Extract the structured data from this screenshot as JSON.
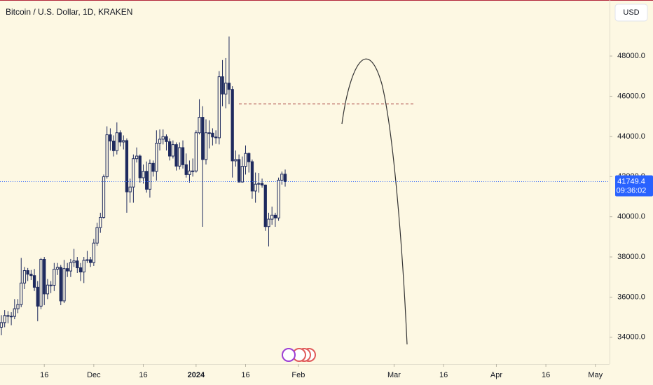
{
  "chart_data": {
    "type": "candlestick",
    "title": "Bitcoin / U.S. Dollar, 1D, KRAKEN",
    "currency": "USD",
    "x": [
      0,
      1,
      2,
      3,
      4,
      5,
      6,
      7,
      8,
      9,
      10,
      11,
      12,
      13,
      14,
      15,
      16,
      17,
      18,
      19,
      20,
      21,
      22,
      23,
      24,
      25,
      26,
      27,
      28,
      29,
      30,
      31,
      32,
      33,
      34,
      35,
      36,
      37,
      38,
      39,
      40,
      41,
      42,
      43,
      44,
      45,
      46,
      47,
      48,
      49,
      50,
      51,
      52,
      53,
      54,
      55,
      56,
      57,
      58,
      59,
      60,
      61,
      62,
      63,
      64,
      65,
      66,
      67,
      68,
      69,
      70,
      71,
      72,
      73,
      74,
      75,
      76,
      77,
      78,
      79,
      80,
      81,
      82,
      83,
      84,
      85,
      86
    ],
    "open": [
      34500,
      34730,
      35080,
      35050,
      35040,
      35420,
      35630,
      36700,
      37320,
      37140,
      37070,
      36490,
      35550,
      37880,
      36160,
      36600,
      36590,
      37390,
      37480,
      35810,
      37420,
      37300,
      37720,
      37800,
      37460,
      37250,
      37830,
      37860,
      37720,
      38690,
      39460,
      39970,
      41990,
      44080,
      43770,
      43290,
      44180,
      43720,
      43790,
      41240,
      41480,
      42890,
      43020,
      41940,
      42260,
      41370,
      42660,
      42260,
      43660,
      43860,
      43990,
      43740,
      43020,
      43590,
      42520,
      43440,
      42590,
      42100,
      42280,
      42280,
      44180,
      44950,
      42850,
      44180,
      44160,
      43970,
      43930,
      46970,
      46110,
      46650,
      46340,
      42780,
      42850,
      41730,
      42510,
      43150,
      42740,
      41280,
      41620,
      41660,
      41580,
      39510,
      39880,
      40080,
      39940,
      41820,
      42120
    ],
    "high": [
      35100,
      35350,
      35300,
      35250,
      35900,
      35900,
      37950,
      37500,
      37450,
      37350,
      37400,
      36800,
      37950,
      38000,
      36900,
      36800,
      37700,
      37700,
      37600,
      37850,
      37700,
      37900,
      38400,
      38000,
      37700,
      38000,
      38300,
      38000,
      38900,
      39700,
      40200,
      42100,
      44500,
      44400,
      44050,
      44700,
      44300,
      44050,
      43900,
      41900,
      43100,
      43450,
      43100,
      42600,
      42750,
      42850,
      42800,
      44300,
      44350,
      44350,
      44100,
      43900,
      43800,
      43700,
      43700,
      43800,
      43150,
      42800,
      42900,
      44300,
      45850,
      45500,
      44850,
      44800,
      44400,
      44300,
      47250,
      47800,
      47900,
      48970,
      46500,
      43300,
      43100,
      43000,
      43550,
      43200,
      42850,
      42200,
      42180,
      41900,
      41600,
      40200,
      40500,
      40200,
      41950,
      42250,
      42350
    ],
    "low": [
      34100,
      34500,
      34700,
      34600,
      34900,
      35200,
      35500,
      36400,
      36800,
      36850,
      36300,
      34800,
      35400,
      35600,
      35900,
      36200,
      36300,
      37100,
      35600,
      35700,
      37000,
      37000,
      37500,
      37200,
      36800,
      36700,
      37700,
      37500,
      37550,
      38550,
      39200,
      39900,
      41900,
      43300,
      43000,
      43100,
      43500,
      43350,
      40200,
      40700,
      40700,
      42700,
      41700,
      41650,
      41200,
      40950,
      42000,
      41800,
      43300,
      43600,
      43300,
      42800,
      42900,
      42300,
      42350,
      42400,
      41950,
      41700,
      42000,
      42200,
      44100,
      39500,
      42600,
      43400,
      43550,
      43630,
      43600,
      45500,
      45400,
      45600,
      41950,
      42500,
      41700,
      41700,
      42100,
      42200,
      40900,
      40700,
      41200,
      41450,
      39300,
      38520,
      39600,
      39500,
      39800,
      41600,
      41500
    ],
    "close": [
      34730,
      35080,
      35050,
      35040,
      35420,
      35630,
      36700,
      37320,
      37140,
      37070,
      36490,
      35550,
      37880,
      36160,
      36600,
      36590,
      37390,
      37480,
      35810,
      37420,
      37300,
      37720,
      37800,
      37460,
      37250,
      37830,
      37860,
      37720,
      38690,
      39460,
      39970,
      41990,
      44080,
      43770,
      43290,
      44180,
      43720,
      43790,
      41240,
      41480,
      42890,
      43020,
      41940,
      42260,
      41370,
      42660,
      42260,
      43660,
      43860,
      43990,
      43740,
      43020,
      43590,
      42520,
      43440,
      42590,
      42100,
      42280,
      42280,
      44180,
      44950,
      42850,
      44180,
      44160,
      43970,
      43930,
      46970,
      46110,
      46650,
      46340,
      42780,
      42850,
      41730,
      42510,
      43150,
      42740,
      41280,
      41620,
      41660,
      41580,
      39510,
      39880,
      40080,
      39940,
      41820,
      42120,
      41749
    ],
    "up_color": "#fdf8e3",
    "down_color": "#1e2a5e",
    "outline_color": "#1e2a5e",
    "xlim": [
      -0.42,
      184.3
    ],
    "xticks": [
      {
        "value": 13,
        "label": "16"
      },
      {
        "value": 28,
        "label": "Dec"
      },
      {
        "value": 43,
        "label": "16"
      },
      {
        "value": 59,
        "label": "2024"
      },
      {
        "value": 74,
        "label": "16"
      },
      {
        "value": 90,
        "label": "Feb"
      },
      {
        "value": 119,
        "label": "Mar"
      },
      {
        "value": 134,
        "label": "16"
      },
      {
        "value": 150,
        "label": "Apr"
      },
      {
        "value": 165,
        "label": "16"
      },
      {
        "value": 180,
        "label": "May"
      }
    ],
    "ylim": [
      32670,
      50790
    ],
    "yticks": [
      {
        "value": 34000,
        "label": "34000.0"
      },
      {
        "value": 36000,
        "label": "36000.0"
      },
      {
        "value": 38000,
        "label": "38000.0"
      },
      {
        "value": 40000,
        "label": "40000.0"
      },
      {
        "value": 42000,
        "label": "42000.0"
      },
      {
        "value": 44000,
        "label": "44000.0"
      },
      {
        "value": 46000,
        "label": "46000.0"
      },
      {
        "value": 48000,
        "label": "48000.0"
      }
    ],
    "last_price": 41749.4,
    "countdown": "09:36:02",
    "last_price_color": "#2962ff"
  }
}
